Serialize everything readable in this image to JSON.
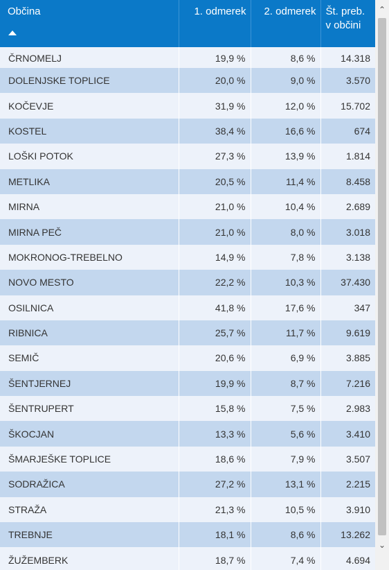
{
  "header": {
    "col_municipality": "Občina",
    "col_first": "1. odmerek",
    "col_second": "2. odmerek",
    "col_population": "Št. preb. v občini"
  },
  "rows": [
    {
      "name": "ČRNOMELJ",
      "first": "19,9 %",
      "second": "8,6 %",
      "population": "14.318"
    },
    {
      "name": "DOLENJSKE TOPLICE",
      "first": "20,0 %",
      "second": "9,0 %",
      "population": "3.570"
    },
    {
      "name": "KOČEVJE",
      "first": "31,9 %",
      "second": "12,0 %",
      "population": "15.702"
    },
    {
      "name": "KOSTEL",
      "first": "38,4 %",
      "second": "16,6 %",
      "population": "674"
    },
    {
      "name": "LOŠKI POTOK",
      "first": "27,3 %",
      "second": "13,9 %",
      "population": "1.814"
    },
    {
      "name": "METLIKA",
      "first": "20,5 %",
      "second": "11,4 %",
      "population": "8.458"
    },
    {
      "name": "MIRNA",
      "first": "21,0 %",
      "second": "10,4 %",
      "population": "2.689"
    },
    {
      "name": "MIRNA PEČ",
      "first": "21,0 %",
      "second": "8,0 %",
      "population": "3.018"
    },
    {
      "name": "MOKRONOG-TREBELNO",
      "first": "14,9 %",
      "second": "7,8 %",
      "population": "3.138"
    },
    {
      "name": "NOVO MESTO",
      "first": "22,2 %",
      "second": "10,3 %",
      "population": "37.430"
    },
    {
      "name": "OSILNICA",
      "first": "41,8 %",
      "second": "17,6 %",
      "population": "347"
    },
    {
      "name": "RIBNICA",
      "first": "25,7 %",
      "second": "11,7 %",
      "population": "9.619"
    },
    {
      "name": "SEMIČ",
      "first": "20,6 %",
      "second": "6,9 %",
      "population": "3.885"
    },
    {
      "name": "ŠENTJERNEJ",
      "first": "19,9 %",
      "second": "8,7 %",
      "population": "7.216"
    },
    {
      "name": "ŠENTRUPERT",
      "first": "15,8 %",
      "second": "7,5 %",
      "population": "2.983"
    },
    {
      "name": "ŠKOCJAN",
      "first": "13,3 %",
      "second": "5,6 %",
      "population": "3.410"
    },
    {
      "name": "ŠMARJEŠKE TOPLICE",
      "first": "18,6 %",
      "second": "7,9 %",
      "population": "3.507"
    },
    {
      "name": "SODRAŽICA",
      "first": "27,2 %",
      "second": "13,1 %",
      "population": "2.215"
    },
    {
      "name": "STRAŽA",
      "first": "21,3 %",
      "second": "10,5 %",
      "population": "3.910"
    },
    {
      "name": "TREBNJE",
      "first": "18,1 %",
      "second": "8,6 %",
      "population": "13.262"
    },
    {
      "name": "ŽUŽEMBERK",
      "first": "18,7 %",
      "second": "7,4 %",
      "population": "4.694"
    }
  ],
  "colors": {
    "header_bg": "#0b79c8",
    "row_light": "#edf2fa",
    "row_dark": "#c3d7ee"
  },
  "icons": {
    "sort": "sort-ascending-icon",
    "scroll_up": "chevron-up-icon",
    "scroll_down": "chevron-down-icon"
  }
}
